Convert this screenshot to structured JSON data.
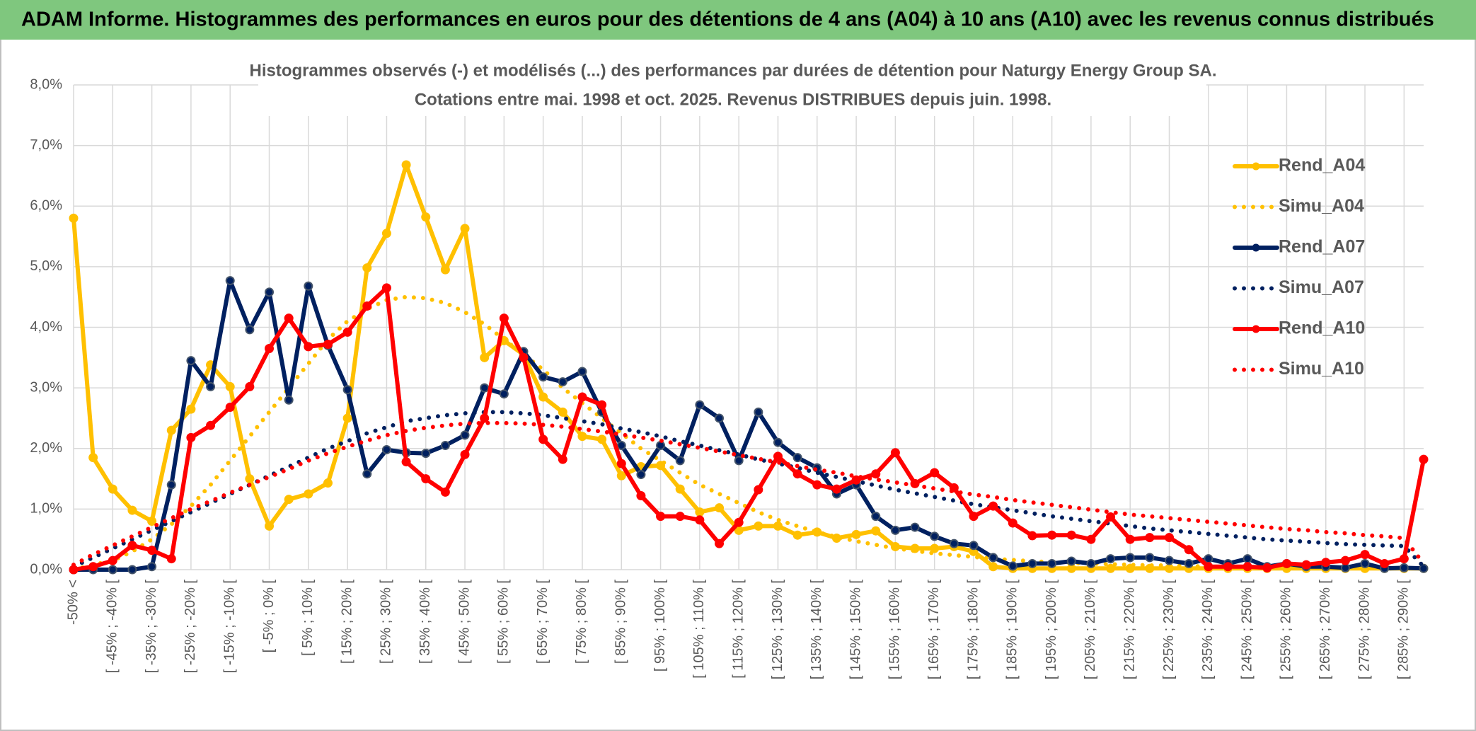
{
  "header": {
    "title": "ADAM Informe. Histogrammes des performances en euros pour des détentions de 4 ans (A04) à 10 ans (A10) avec les revenus connus distribués"
  },
  "chart_data": {
    "type": "line",
    "subtitle": [
      "Histogrammes observés (-) et modélisés (...) des performances par durées de détention pour Naturgy Energy Group SA.",
      "Cotations entre mai. 1998 et oct. 2025. Revenus DISTRIBUES depuis juin. 1998."
    ],
    "categories": [
      "-50% <",
      null,
      "[ -45% ; -40% [",
      null,
      "[ -35% ; -30% [",
      null,
      "[ -25% ; -20% [",
      null,
      "[ -15% ; -10% [",
      null,
      "[ -5% ; 0% [",
      null,
      "[ 5% ; 10% [",
      null,
      "[ 15% ; 20% [",
      null,
      "[ 25% ; 30% [",
      null,
      "[ 35% ; 40% [",
      null,
      "[ 45% ; 50% [",
      null,
      "[ 55% ; 60% [",
      null,
      "[ 65% ; 70% [",
      null,
      "[ 75% ; 80% [",
      null,
      "[ 85% ; 90% [",
      null,
      "[ 95% ; 100% [",
      null,
      "[ 105% ; 110% [",
      null,
      "[ 115% ; 120% [",
      null,
      "[ 125% ; 130% [",
      null,
      "[ 135% ; 140% [",
      null,
      "[ 145% ; 150% [",
      null,
      "[ 155% ; 160% [",
      null,
      "[ 165% ; 170% [",
      null,
      "[ 175% ; 180% [",
      null,
      "[ 185% ; 190% [",
      null,
      "[ 195% ; 200% [",
      null,
      "[ 205% ; 210% [",
      null,
      "[ 215% ; 220% [",
      null,
      "[ 225% ; 230% [",
      null,
      "[ 235% ; 240% [",
      null,
      "[ 245% ; 250% [",
      null,
      "[ 255% ; 260% [",
      null,
      "[ 265% ; 270% [",
      null,
      "[ 275% ; 280% [",
      null,
      "[ 285% ; 290% [",
      null
    ],
    "series": [
      {
        "name": "Rend_A04",
        "color": "#ffc000",
        "dash": "solid",
        "marker": true,
        "values": [
          5.8,
          1.85,
          1.33,
          0.98,
          0.8,
          2.3,
          2.65,
          3.38,
          3.02,
          1.5,
          0.72,
          1.16,
          1.25,
          1.43,
          2.5,
          4.98,
          5.55,
          6.68,
          5.82,
          4.95,
          5.63,
          3.5,
          3.78,
          3.55,
          2.85,
          2.6,
          2.2,
          2.15,
          1.55,
          1.7,
          1.72,
          1.33,
          0.95,
          1.02,
          0.65,
          0.72,
          0.72,
          0.57,
          0.62,
          0.52,
          0.58,
          0.64,
          0.38,
          0.35,
          0.35,
          0.38,
          0.3,
          0.05,
          0.02,
          0.02,
          0.02,
          0.02,
          0.02,
          0.02,
          0.02,
          0.02,
          0.02,
          0.02,
          0.02,
          0.02,
          0.02,
          0.02,
          0.02,
          0.02,
          0.02,
          0.02,
          0.02,
          0.02,
          0.02,
          0.02
        ]
      },
      {
        "name": "Simu_A04",
        "color": "#ffc000",
        "dash": "dotted",
        "marker": false,
        "values": [
          0,
          0.08,
          0.15,
          0.3,
          0.5,
          0.75,
          1.05,
          1.4,
          1.8,
          2.2,
          2.6,
          3.0,
          3.4,
          3.8,
          4.1,
          4.3,
          4.45,
          4.5,
          4.48,
          4.4,
          4.25,
          4.05,
          3.8,
          3.55,
          3.3,
          3.0,
          2.75,
          2.5,
          2.25,
          2.0,
          1.8,
          1.6,
          1.4,
          1.25,
          1.1,
          0.95,
          0.82,
          0.72,
          0.62,
          0.54,
          0.47,
          0.41,
          0.35,
          0.31,
          0.27,
          0.24,
          0.21,
          0.18,
          0.16,
          0.14,
          0.12,
          0.11,
          0.1,
          0.09,
          0.08,
          0.07,
          0.07,
          0.06,
          0.05,
          0.05,
          0.04,
          0.04,
          0.04,
          0.03,
          0.03,
          0.03,
          0.03,
          0.02,
          0.02,
          0.02
        ]
      },
      {
        "name": "Rend_A07",
        "color": "#002060",
        "dash": "solid",
        "marker": true,
        "values": [
          0,
          0,
          0,
          0,
          0.05,
          1.4,
          3.45,
          3.02,
          4.77,
          3.96,
          4.58,
          2.8,
          4.68,
          3.7,
          2.97,
          1.58,
          1.98,
          1.93,
          1.92,
          2.05,
          2.22,
          3.0,
          2.9,
          3.6,
          3.18,
          3.1,
          3.27,
          2.6,
          2.05,
          1.57,
          2.05,
          1.8,
          2.72,
          2.5,
          1.8,
          2.6,
          2.1,
          1.85,
          1.68,
          1.25,
          1.4,
          0.88,
          0.65,
          0.7,
          0.55,
          0.43,
          0.4,
          0.2,
          0.06,
          0.1,
          0.1,
          0.14,
          0.1,
          0.18,
          0.2,
          0.2,
          0.15,
          0.1,
          0.18,
          0.1,
          0.18,
          0.05,
          0.1,
          0.05,
          0.05,
          0.03,
          0.1,
          0.02,
          0.03,
          0.02
        ]
      },
      {
        "name": "Simu_A07",
        "color": "#002060",
        "dash": "dotted",
        "marker": false,
        "values": [
          0.05,
          0.2,
          0.35,
          0.5,
          0.65,
          0.8,
          0.95,
          1.1,
          1.25,
          1.4,
          1.55,
          1.7,
          1.85,
          2.0,
          2.12,
          2.25,
          2.35,
          2.45,
          2.5,
          2.55,
          2.58,
          2.6,
          2.6,
          2.58,
          2.55,
          2.5,
          2.45,
          2.4,
          2.33,
          2.27,
          2.2,
          2.12,
          2.05,
          1.97,
          1.9,
          1.82,
          1.75,
          1.68,
          1.6,
          1.53,
          1.46,
          1.39,
          1.32,
          1.26,
          1.2,
          1.14,
          1.08,
          1.03,
          0.98,
          0.93,
          0.88,
          0.84,
          0.8,
          0.76,
          0.72,
          0.68,
          0.65,
          0.62,
          0.59,
          0.56,
          0.53,
          0.5,
          0.48,
          0.46,
          0.44,
          0.42,
          0.41,
          0.4,
          0.39,
          0.05
        ]
      },
      {
        "name": "Rend_A10",
        "color": "#ff0000",
        "dash": "solid",
        "marker": true,
        "values": [
          0,
          0.05,
          0.15,
          0.4,
          0.32,
          0.18,
          2.18,
          2.38,
          2.68,
          3.02,
          3.65,
          4.15,
          3.68,
          3.72,
          3.92,
          4.35,
          4.65,
          1.78,
          1.5,
          1.28,
          1.9,
          2.5,
          4.15,
          3.5,
          2.15,
          1.82,
          2.85,
          2.72,
          1.75,
          1.22,
          0.88,
          0.88,
          0.82,
          0.43,
          0.78,
          1.32,
          1.87,
          1.58,
          1.4,
          1.33,
          1.48,
          1.58,
          1.93,
          1.42,
          1.6,
          1.35,
          0.88,
          1.05,
          0.77,
          0.56,
          0.57,
          0.57,
          0.5,
          0.87,
          0.5,
          0.53,
          0.53,
          0.33,
          0.05,
          0.05,
          0.05,
          0.03,
          0.1,
          0.08,
          0.12,
          0.15,
          0.25,
          0.1,
          0.18,
          1.82
        ]
      },
      {
        "name": "Simu_A10",
        "color": "#ff0000",
        "dash": "dotted",
        "marker": false,
        "values": [
          0.08,
          0.25,
          0.4,
          0.55,
          0.7,
          0.85,
          1.0,
          1.13,
          1.27,
          1.4,
          1.53,
          1.66,
          1.8,
          1.92,
          2.03,
          2.13,
          2.22,
          2.29,
          2.34,
          2.38,
          2.41,
          2.42,
          2.42,
          2.41,
          2.39,
          2.36,
          2.32,
          2.28,
          2.23,
          2.18,
          2.13,
          2.07,
          2.01,
          1.95,
          1.89,
          1.83,
          1.77,
          1.71,
          1.65,
          1.6,
          1.54,
          1.49,
          1.44,
          1.39,
          1.34,
          1.29,
          1.24,
          1.2,
          1.15,
          1.11,
          1.07,
          1.03,
          0.99,
          0.95,
          0.91,
          0.88,
          0.85,
          0.82,
          0.79,
          0.76,
          0.73,
          0.7,
          0.67,
          0.65,
          0.62,
          0.6,
          0.57,
          0.55,
          0.52,
          0.1
        ]
      }
    ],
    "ylim": [
      0,
      8
    ],
    "yticks": [
      {
        "value": 0,
        "label": "0,0%"
      },
      {
        "value": 1,
        "label": "1,0%"
      },
      {
        "value": 2,
        "label": "2,0%"
      },
      {
        "value": 3,
        "label": "3,0%"
      },
      {
        "value": 4,
        "label": "4,0%"
      },
      {
        "value": 5,
        "label": "5,0%"
      },
      {
        "value": 6,
        "label": "6,0%"
      },
      {
        "value": 7,
        "label": "7,0%"
      },
      {
        "value": 8,
        "label": "8,0%"
      }
    ],
    "grid": true,
    "legend": "right"
  }
}
